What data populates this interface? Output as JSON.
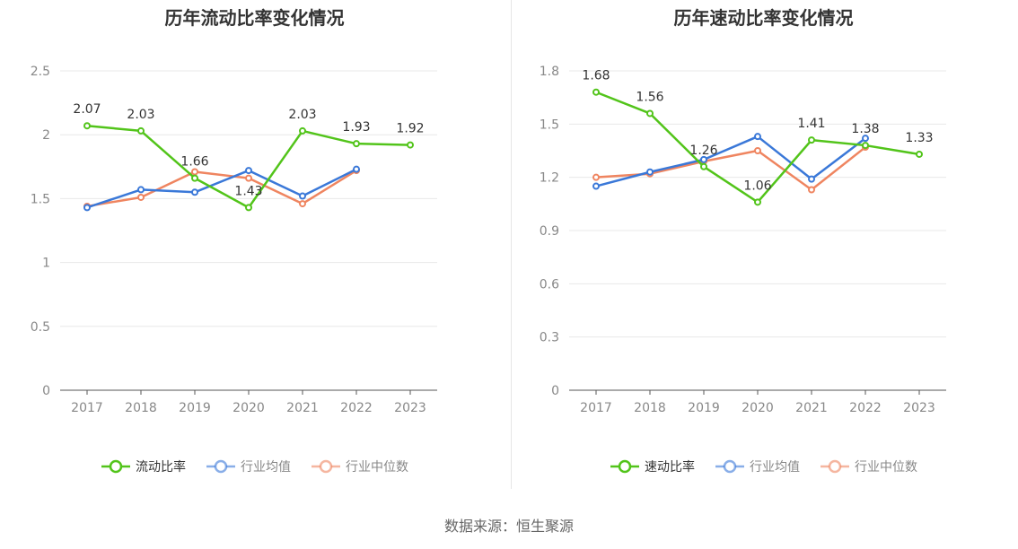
{
  "colors": {
    "primary": "#52c41a",
    "avg": "#3a78d8",
    "median": "#ef8560",
    "grid": "#e8e8e8",
    "axis": "#555555",
    "tick_text": "#888888",
    "label_text": "#333333"
  },
  "legend_icon": "circle-line-marker",
  "source": "数据来源：恒生聚源",
  "chart_data": [
    {
      "type": "line",
      "title": "历年流动比率变化情况",
      "categories": [
        "2017",
        "2018",
        "2019",
        "2020",
        "2021",
        "2022",
        "2023"
      ],
      "ylim": [
        0,
        2.5
      ],
      "yticks": [
        "0",
        "0.5",
        "1",
        "1.5",
        "2",
        "2.5"
      ],
      "grid": true,
      "legend_position": "bottom",
      "series": [
        {
          "name": "流动比率",
          "values": [
            2.07,
            2.03,
            1.66,
            1.43,
            2.03,
            1.93,
            1.92
          ],
          "labels": [
            "2.07",
            "2.03",
            "1.66",
            "1.43",
            "2.03",
            "1.93",
            "1.92"
          ],
          "color": "#52c41a"
        },
        {
          "name": "行业均值",
          "values": [
            1.43,
            1.57,
            1.55,
            1.72,
            1.52,
            1.73,
            null
          ],
          "color": "#3a78d8"
        },
        {
          "name": "行业中位数",
          "values": [
            1.44,
            1.51,
            1.71,
            1.66,
            1.46,
            1.72,
            null
          ],
          "color": "#ef8560"
        }
      ]
    },
    {
      "type": "line",
      "title": "历年速动比率变化情况",
      "categories": [
        "2017",
        "2018",
        "2019",
        "2020",
        "2021",
        "2022",
        "2023"
      ],
      "ylim": [
        0,
        1.8
      ],
      "yticks": [
        "0",
        "0.3",
        "0.6",
        "0.9",
        "1.2",
        "1.5",
        "1.8"
      ],
      "grid": true,
      "legend_position": "bottom",
      "series": [
        {
          "name": "速动比率",
          "values": [
            1.68,
            1.56,
            1.26,
            1.06,
            1.41,
            1.38,
            1.33
          ],
          "labels": [
            "1.68",
            "1.56",
            "1.26",
            "1.06",
            "1.41",
            "1.38",
            "1.33"
          ],
          "color": "#52c41a"
        },
        {
          "name": "行业均值",
          "values": [
            1.15,
            1.23,
            1.3,
            1.43,
            1.19,
            1.42,
            null
          ],
          "color": "#3a78d8"
        },
        {
          "name": "行业中位数",
          "values": [
            1.2,
            1.22,
            1.29,
            1.35,
            1.13,
            1.37,
            null
          ],
          "color": "#ef8560"
        }
      ]
    }
  ]
}
